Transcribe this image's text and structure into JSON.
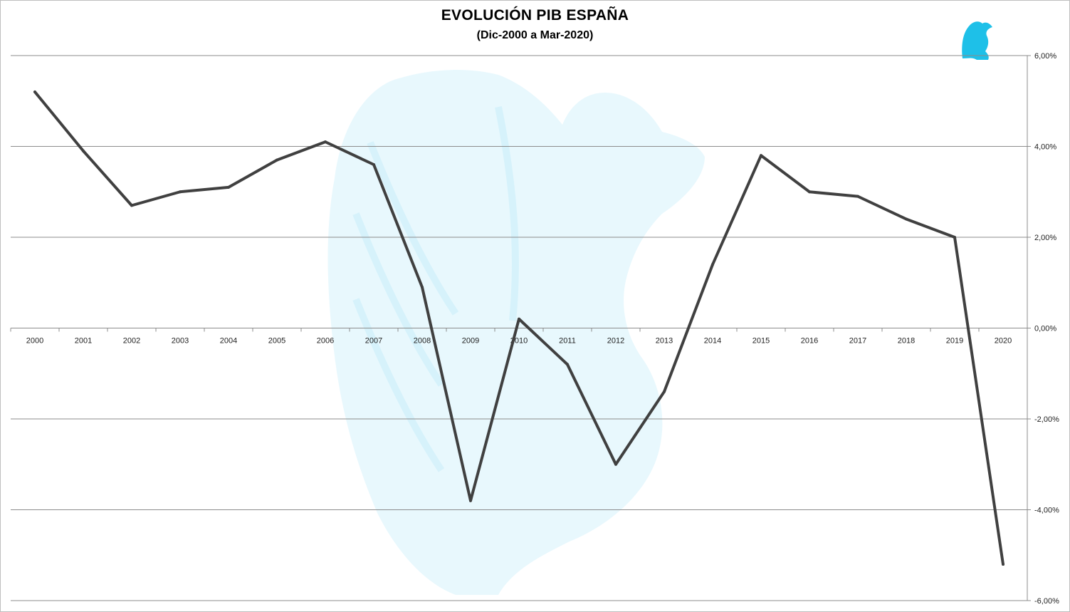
{
  "chart_data": {
    "type": "line",
    "title": "EVOLUCIÓN PIB ESPAÑA",
    "subtitle": "(Dic-2000 a Mar-2020)",
    "xlabel": "",
    "ylabel": "",
    "categories": [
      "2000",
      "2001",
      "2002",
      "2003",
      "2004",
      "2005",
      "2006",
      "2007",
      "2008",
      "2009",
      "2010",
      "2011",
      "2012",
      "2013",
      "2014",
      "2015",
      "2016",
      "2017",
      "2018",
      "2019",
      "2020"
    ],
    "series": [
      {
        "values": [
          5.2,
          3.9,
          2.7,
          3.0,
          3.1,
          3.7,
          4.1,
          3.6,
          0.9,
          -3.8,
          0.2,
          -0.8,
          -3.0,
          -1.4,
          1.4,
          3.8,
          3.0,
          2.9,
          2.4,
          2.0,
          -5.2
        ],
        "color": "#404040"
      }
    ],
    "ylim": [
      -6,
      6
    ],
    "yticks": [
      6,
      4,
      2,
      0,
      -2,
      -4,
      -6
    ],
    "ytick_labels": [
      "6,00%",
      "4,00%",
      "2,00%",
      "0,00%",
      "-2,00%",
      "-4,00%",
      "-6,00%"
    ],
    "yaxis_position": "right",
    "grid": true,
    "legend": "none",
    "watermark": "eagle-logo",
    "watermark_color": "#00b0e6"
  }
}
